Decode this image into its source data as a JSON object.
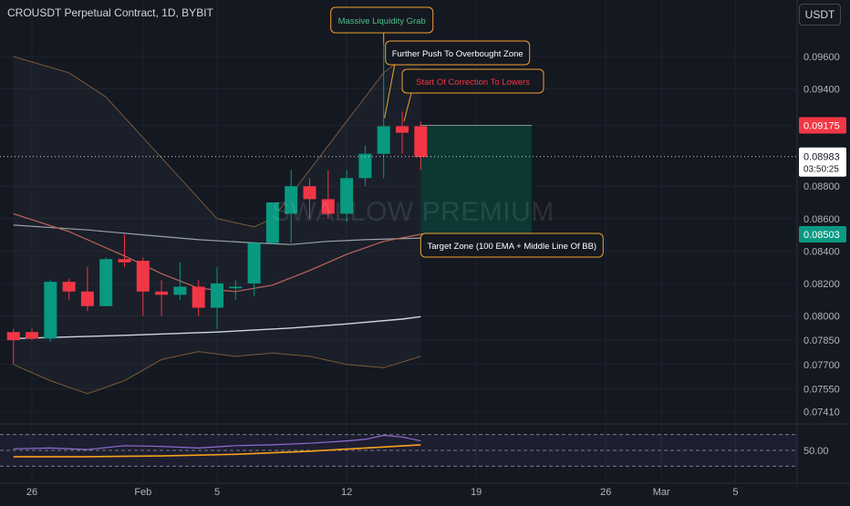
{
  "header": {
    "title": "CROUSDT Perpetual Contract, 1D, BYBIT",
    "currency_button": "USDT"
  },
  "watermark": "SWALLOW PREMIUM",
  "colors": {
    "background": "#141821",
    "up": "#089981",
    "down": "#f23645",
    "grid": "#1e222d",
    "axis_text": "#b2b5be",
    "ema": "#d1d4dc",
    "bb_mid": "#c1645e",
    "bb_band": "#7a5a3a",
    "annotation_border": "#f0a030",
    "target_zone": "#0b3d36",
    "rsi": "#8e6fd1",
    "rsi_ma": "#f7a21b"
  },
  "chart_data": {
    "type": "candlestick",
    "ylim": [
      0.0735,
      0.0978
    ],
    "y_ticks": [
      "0.09600",
      "0.09400",
      "0.09175",
      "0.08800",
      "0.08600",
      "0.08400",
      "0.08200",
      "0.08000",
      "0.07850",
      "0.07700",
      "0.07550",
      "0.07410"
    ],
    "y_tick_values": [
      0.096,
      0.094,
      0.09175,
      0.088,
      0.086,
      0.084,
      0.082,
      0.08,
      0.0785,
      0.077,
      0.0755,
      0.0741
    ],
    "x_ticks": [
      {
        "label": "26",
        "day": 0
      },
      {
        "label": "Feb",
        "day": 6
      },
      {
        "label": "5",
        "day": 10
      },
      {
        "label": "12",
        "day": 17
      },
      {
        "label": "19",
        "day": 24
      },
      {
        "label": "26",
        "day": 31
      },
      {
        "label": "Mar",
        "day": 34
      },
      {
        "label": "5",
        "day": 38
      }
    ],
    "candles": [
      {
        "day": -1,
        "o": 0.079,
        "h": 0.0792,
        "l": 0.077,
        "c": 0.0785
      },
      {
        "day": 0,
        "o": 0.079,
        "h": 0.0792,
        "l": 0.0785,
        "c": 0.0786
      },
      {
        "day": 1,
        "o": 0.0786,
        "h": 0.0822,
        "l": 0.0784,
        "c": 0.0821
      },
      {
        "day": 2,
        "o": 0.0821,
        "h": 0.0823,
        "l": 0.081,
        "c": 0.0815
      },
      {
        "day": 3,
        "o": 0.0815,
        "h": 0.083,
        "l": 0.0803,
        "c": 0.0806
      },
      {
        "day": 4,
        "o": 0.0806,
        "h": 0.0836,
        "l": 0.0806,
        "c": 0.0835
      },
      {
        "day": 5,
        "o": 0.0835,
        "h": 0.085,
        "l": 0.083,
        "c": 0.0833
      },
      {
        "day": 6,
        "o": 0.0834,
        "h": 0.0836,
        "l": 0.08,
        "c": 0.0815
      },
      {
        "day": 7,
        "o": 0.0815,
        "h": 0.0822,
        "l": 0.08,
        "c": 0.0813
      },
      {
        "day": 8,
        "o": 0.0813,
        "h": 0.0833,
        "l": 0.081,
        "c": 0.0818
      },
      {
        "day": 9,
        "o": 0.0818,
        "h": 0.0822,
        "l": 0.08,
        "c": 0.0805
      },
      {
        "day": 10,
        "o": 0.0805,
        "h": 0.083,
        "l": 0.0792,
        "c": 0.082
      },
      {
        "day": 11,
        "o": 0.0817,
        "h": 0.0822,
        "l": 0.081,
        "c": 0.0818
      },
      {
        "day": 12,
        "o": 0.082,
        "h": 0.0845,
        "l": 0.0812,
        "c": 0.0845
      },
      {
        "day": 13,
        "o": 0.0845,
        "h": 0.087,
        "l": 0.0844,
        "c": 0.087
      },
      {
        "day": 14,
        "o": 0.0863,
        "h": 0.089,
        "l": 0.0845,
        "c": 0.088
      },
      {
        "day": 15,
        "o": 0.088,
        "h": 0.0885,
        "l": 0.086,
        "c": 0.0872
      },
      {
        "day": 16,
        "o": 0.0872,
        "h": 0.089,
        "l": 0.086,
        "c": 0.0863
      },
      {
        "day": 17,
        "o": 0.0863,
        "h": 0.089,
        "l": 0.0858,
        "c": 0.0885
      },
      {
        "day": 18,
        "o": 0.0885,
        "h": 0.0905,
        "l": 0.088,
        "c": 0.09
      },
      {
        "day": 19,
        "o": 0.09,
        "h": 0.0968,
        "l": 0.0885,
        "c": 0.0917
      },
      {
        "day": 20,
        "o": 0.0917,
        "h": 0.0926,
        "l": 0.09,
        "c": 0.0913
      },
      {
        "day": 21,
        "o": 0.0917,
        "h": 0.092,
        "l": 0.089,
        "c": 0.0898
      }
    ],
    "ema_100": [
      {
        "day": -1,
        "v": 0.0786
      },
      {
        "day": 5,
        "v": 0.0788
      },
      {
        "day": 10,
        "v": 0.079
      },
      {
        "day": 14,
        "v": 0.07925
      },
      {
        "day": 17,
        "v": 0.0795
      },
      {
        "day": 20,
        "v": 0.0798
      },
      {
        "day": 21,
        "v": 0.07995
      }
    ],
    "ema_slow": [
      {
        "day": -1,
        "v": 0.0856
      },
      {
        "day": 3,
        "v": 0.0853
      },
      {
        "day": 6,
        "v": 0.085
      },
      {
        "day": 9,
        "v": 0.0847
      },
      {
        "day": 12,
        "v": 0.0845
      },
      {
        "day": 14,
        "v": 0.0844
      },
      {
        "day": 16,
        "v": 0.0846
      },
      {
        "day": 18,
        "v": 0.0847
      },
      {
        "day": 21,
        "v": 0.0848
      }
    ],
    "bb_middle": [
      {
        "day": -1,
        "v": 0.0863
      },
      {
        "day": 2,
        "v": 0.0852
      },
      {
        "day": 5,
        "v": 0.0837
      },
      {
        "day": 7,
        "v": 0.0826
      },
      {
        "day": 9,
        "v": 0.0817
      },
      {
        "day": 11,
        "v": 0.0815
      },
      {
        "day": 13,
        "v": 0.0819
      },
      {
        "day": 15,
        "v": 0.0828
      },
      {
        "day": 17,
        "v": 0.0838
      },
      {
        "day": 19,
        "v": 0.0846
      },
      {
        "day": 21,
        "v": 0.08503
      }
    ],
    "bb_upper": [
      {
        "day": -1,
        "v": 0.096
      },
      {
        "day": 2,
        "v": 0.095
      },
      {
        "day": 4,
        "v": 0.0935
      },
      {
        "day": 6,
        "v": 0.091
      },
      {
        "day": 8,
        "v": 0.0885
      },
      {
        "day": 10,
        "v": 0.086
      },
      {
        "day": 12,
        "v": 0.0855
      },
      {
        "day": 13,
        "v": 0.086
      },
      {
        "day": 15,
        "v": 0.089
      },
      {
        "day": 17,
        "v": 0.092
      },
      {
        "day": 19,
        "v": 0.095
      },
      {
        "day": 21,
        "v": 0.0968
      }
    ],
    "bb_lower": [
      {
        "day": -1,
        "v": 0.077
      },
      {
        "day": 1,
        "v": 0.076
      },
      {
        "day": 3,
        "v": 0.0752
      },
      {
        "day": 5,
        "v": 0.076
      },
      {
        "day": 7,
        "v": 0.0773
      },
      {
        "day": 9,
        "v": 0.0778
      },
      {
        "day": 11,
        "v": 0.0775
      },
      {
        "day": 13,
        "v": 0.0777
      },
      {
        "day": 15,
        "v": 0.0775
      },
      {
        "day": 17,
        "v": 0.077
      },
      {
        "day": 19,
        "v": 0.0768
      },
      {
        "day": 21,
        "v": 0.0775
      }
    ],
    "target_zone": {
      "start_day": 21,
      "end_day": 27,
      "top": 0.09175,
      "bottom": 0.08503
    },
    "current_price": {
      "value": 0.08983,
      "label": "0.08983",
      "countdown": "03:50:25"
    },
    "price_tags": [
      {
        "value": 0.09175,
        "label": "0.09175",
        "color": "#f23645"
      },
      {
        "value": 0.08503,
        "label": "0.08503",
        "color": "#089981"
      }
    ],
    "annotations": [
      {
        "text": "Massive Liquidity Grab",
        "color": "#4fbf8a",
        "day": 19,
        "price": 0.0968
      },
      {
        "text": "Further Push To Overbought Zone",
        "color": "#ffffff",
        "day": 19,
        "price": 0.0922
      },
      {
        "text": "Start Of Correction To Lowers",
        "color": "#f23645",
        "day": 20,
        "price": 0.092
      },
      {
        "text": "Target Zone (100 EMA + Middle Line Of BB)",
        "color": "#ffffff",
        "day": 21,
        "price": 0.08503
      }
    ],
    "rsi": {
      "ylim": [
        20,
        80
      ],
      "label": "50.00",
      "levels": [
        70,
        50,
        30
      ],
      "values": [
        {
          "day": -1,
          "v": 52
        },
        {
          "day": 1,
          "v": 53
        },
        {
          "day": 3,
          "v": 51
        },
        {
          "day": 5,
          "v": 56
        },
        {
          "day": 7,
          "v": 55
        },
        {
          "day": 9,
          "v": 53
        },
        {
          "day": 11,
          "v": 56
        },
        {
          "day": 13,
          "v": 57
        },
        {
          "day": 15,
          "v": 59
        },
        {
          "day": 17,
          "v": 62
        },
        {
          "day": 18,
          "v": 64
        },
        {
          "day": 19,
          "v": 69
        },
        {
          "day": 20,
          "v": 67
        },
        {
          "day": 21,
          "v": 62
        }
      ],
      "ma": [
        {
          "day": -1,
          "v": 42
        },
        {
          "day": 3,
          "v": 42
        },
        {
          "day": 7,
          "v": 43
        },
        {
          "day": 11,
          "v": 45
        },
        {
          "day": 15,
          "v": 49
        },
        {
          "day": 18,
          "v": 53
        },
        {
          "day": 21,
          "v": 57
        }
      ]
    }
  }
}
